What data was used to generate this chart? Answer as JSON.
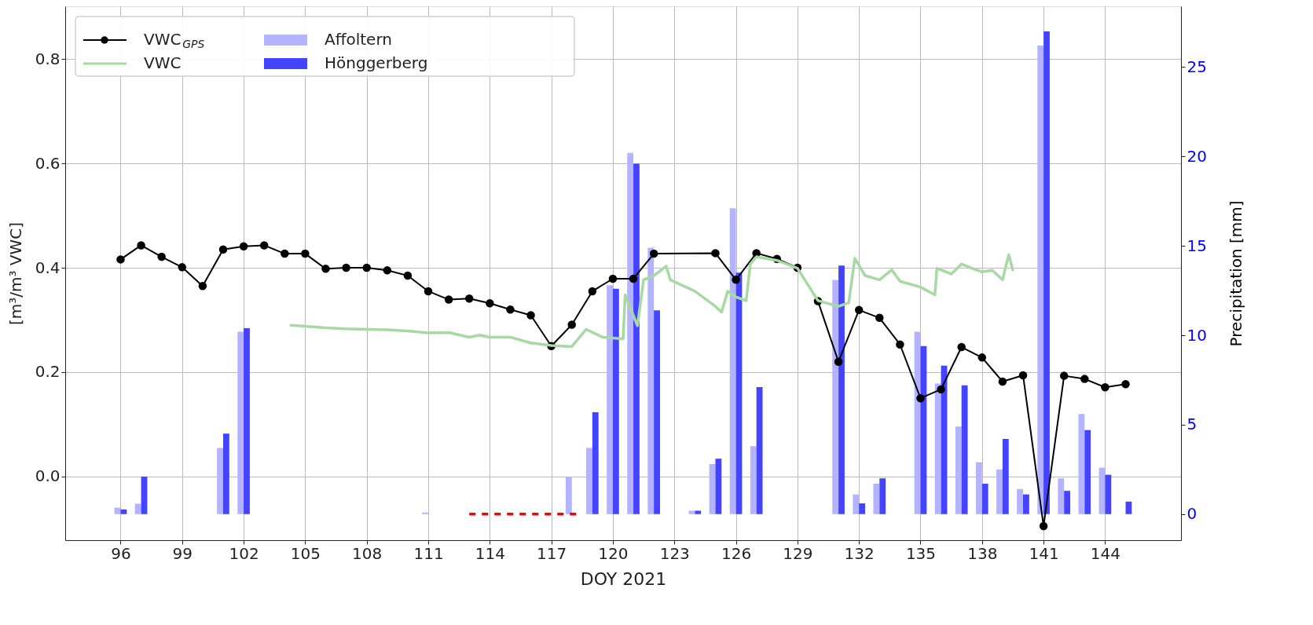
{
  "chart_data": {
    "type": "line",
    "xlabel": "DOY 2021",
    "ylabel": "[m³/m³ VWC]",
    "y2label": "Precipitation [mm]",
    "xlim": [
      93.3,
      147.7
    ],
    "xticks": [
      96,
      99,
      102,
      105,
      108,
      111,
      114,
      117,
      120,
      123,
      126,
      129,
      132,
      135,
      138,
      141,
      144
    ],
    "ylim": [
      -0.122,
      0.901
    ],
    "yticks": [
      {
        "value": 0,
        "label": "0.0"
      },
      {
        "value": 0.2,
        "label": "0.2"
      },
      {
        "value": 0.4,
        "label": "0.4"
      },
      {
        "value": 0.6,
        "label": "0.6"
      },
      {
        "value": 0.8,
        "label": "0.8"
      }
    ],
    "y2lim": [
      -1.46,
      28.4
    ],
    "y2ticks": [
      0,
      5,
      10,
      15,
      20,
      25
    ],
    "grid": true,
    "legend": "top left",
    "series": [
      {
        "name": "VWC$_{GPS}$",
        "color": "#000000",
        "marker": "circle",
        "x": [
          96,
          97,
          98,
          99,
          100,
          101,
          102,
          103,
          104,
          105,
          106,
          107,
          108,
          109,
          110,
          111,
          112,
          113,
          114,
          115,
          116,
          117,
          118,
          119,
          120,
          121,
          122,
          125,
          126,
          127,
          128,
          129,
          130,
          131,
          132,
          133,
          134,
          135,
          136,
          137,
          138,
          139,
          140,
          141,
          142,
          143,
          144,
          145
        ],
        "values": [
          0.416,
          0.443,
          0.421,
          0.401,
          0.365,
          0.435,
          0.441,
          0.443,
          0.427,
          0.427,
          0.398,
          0.4,
          0.4,
          0.395,
          0.385,
          0.355,
          0.339,
          0.341,
          0.332,
          0.32,
          0.309,
          0.25,
          0.291,
          0.355,
          0.379,
          0.379,
          0.427,
          0.428,
          0.377,
          0.428,
          0.417,
          0.4,
          0.336,
          0.22,
          0.319,
          0.304,
          0.253,
          0.15,
          0.167,
          0.248,
          0.228,
          0.182,
          0.194,
          -0.095,
          0.193,
          0.187,
          0.171,
          0.177
        ]
      },
      {
        "name": "VWC",
        "color": "#a8d8a4",
        "marker": "none",
        "x": [
          104.3,
          105,
          106,
          107,
          108,
          109,
          110,
          111,
          112,
          113,
          113.5,
          114,
          115,
          116,
          117,
          118,
          118.7,
          119.5,
          120.5,
          120.6,
          121.2,
          121.5,
          122,
          122.6,
          122.8,
          124,
          125,
          125.3,
          125.6,
          126,
          126.5,
          126.7,
          127,
          128,
          129,
          130,
          131,
          131.5,
          131.8,
          132.3,
          133,
          133.6,
          134,
          135,
          135.7,
          135.8,
          136.5,
          137,
          137.5,
          138,
          138.5,
          139,
          139.3,
          139.5
        ],
        "values": [
          0.29,
          0.288,
          0.285,
          0.283,
          0.282,
          0.281,
          0.279,
          0.275,
          0.276,
          0.267,
          0.271,
          0.267,
          0.267,
          0.256,
          0.251,
          0.249,
          0.282,
          0.267,
          0.264,
          0.348,
          0.289,
          0.377,
          0.385,
          0.403,
          0.377,
          0.355,
          0.326,
          0.315,
          0.355,
          0.344,
          0.337,
          0.407,
          0.421,
          0.414,
          0.399,
          0.337,
          0.326,
          0.333,
          0.418,
          0.385,
          0.377,
          0.396,
          0.374,
          0.363,
          0.348,
          0.399,
          0.388,
          0.407,
          0.399,
          0.392,
          0.395,
          0.377,
          0.425,
          0.396
        ]
      },
      {
        "name": "Affoltern",
        "type": "bar",
        "axis": "y2",
        "color": "#b3b3ff",
        "x": [
          96,
          97,
          101,
          102,
          111,
          118,
          119,
          120,
          121,
          122,
          124,
          125,
          126,
          127,
          131,
          132,
          133,
          135,
          136,
          137,
          138,
          139,
          140,
          141,
          142,
          143,
          144
        ],
        "values": [
          0.36,
          0.58,
          3.7,
          10.2,
          0.09,
          2.1,
          3.7,
          12.8,
          20.2,
          14.9,
          0.19,
          2.8,
          17.1,
          3.8,
          13.1,
          1.1,
          1.7,
          10.2,
          7.3,
          4.9,
          2.9,
          2.5,
          1.4,
          26.2,
          2.0,
          5.6,
          2.6
        ]
      },
      {
        "name": "Hönggerberg",
        "type": "bar",
        "axis": "y2",
        "color": "#4444ff",
        "x": [
          96,
          97,
          101,
          102,
          119,
          120,
          121,
          122,
          124,
          125,
          126,
          127,
          131,
          132,
          133,
          135,
          136,
          137,
          138,
          139,
          140,
          141,
          142,
          143,
          144,
          145
        ],
        "values": [
          0.26,
          2.1,
          4.5,
          10.4,
          5.7,
          12.6,
          19.6,
          11.4,
          0.19,
          3.1,
          13.5,
          7.1,
          13.9,
          0.6,
          2.0,
          9.4,
          8.3,
          7.2,
          1.7,
          4.2,
          1.1,
          27.0,
          1.3,
          4.7,
          2.2,
          0.7
        ]
      },
      {
        "axis": "y2",
        "color": "#ff0000",
        "line_style": "dashed",
        "marker": "none",
        "x": [
          113,
          118.3
        ],
        "values": [
          0,
          0
        ]
      }
    ]
  }
}
